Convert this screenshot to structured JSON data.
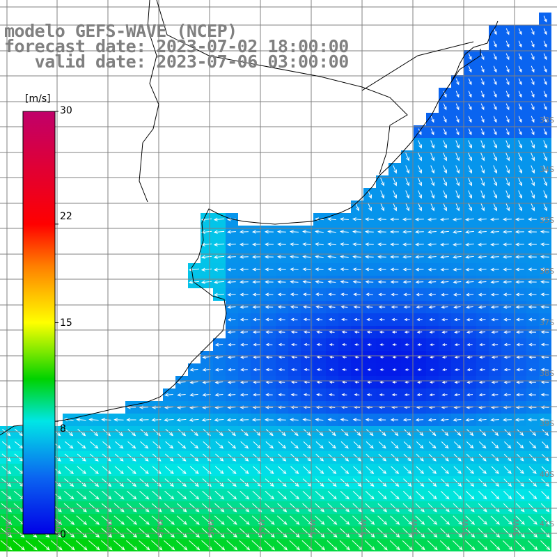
{
  "title": {
    "line1": "modelo GEFS-WAVE (NCEP)",
    "line2": "forecast date: 2023-07-02 18:00:00",
    "line3": "   valid date: 2023-07-06 03:00:00"
  },
  "colorbar": {
    "unit": "[m/s]",
    "ticks": [
      {
        "label": "30",
        "value": 30
      },
      {
        "label": "22",
        "value": 22
      },
      {
        "label": "15",
        "value": 15
      },
      {
        "label": "8",
        "value": 8
      },
      {
        "label": "0",
        "value": 0
      }
    ],
    "range": [
      0,
      30
    ],
    "colors": [
      "#0000e6",
      "#0a7cf0",
      "#00e6e6",
      "#00d200",
      "#ffff00",
      "#ff8000",
      "#ff0000",
      "#c0006a"
    ]
  },
  "lat_labels": [
    "33S",
    "34S",
    "35S",
    "36S",
    "37S",
    "38S",
    "39S",
    "40S",
    "41S"
  ],
  "lon_labels": [
    "60W",
    "59W",
    "58W",
    "57W",
    "56W",
    "55W",
    "54W",
    "53W",
    "52W",
    "51W",
    "50W"
  ],
  "colors": {
    "land": "#ffffff",
    "grid": "#808080",
    "coast": "#000000",
    "arrow": "#ffffff",
    "title": "#808080"
  }
}
